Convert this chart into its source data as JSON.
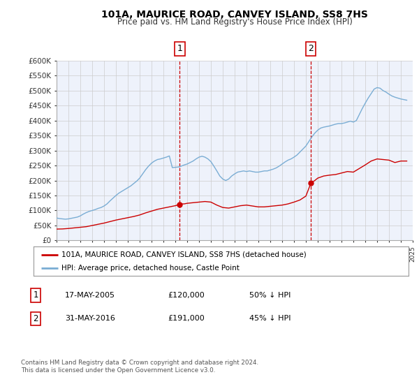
{
  "title": "101A, MAURICE ROAD, CANVEY ISLAND, SS8 7HS",
  "subtitle": "Price paid vs. HM Land Registry's House Price Index (HPI)",
  "ylabel_ticks": [
    "£0",
    "£50K",
    "£100K",
    "£150K",
    "£200K",
    "£250K",
    "£300K",
    "£350K",
    "£400K",
    "£450K",
    "£500K",
    "£550K",
    "£600K"
  ],
  "ytick_values": [
    0,
    50000,
    100000,
    150000,
    200000,
    250000,
    300000,
    350000,
    400000,
    450000,
    500000,
    550000,
    600000
  ],
  "xmin": 1995,
  "xmax": 2025,
  "ymin": 0,
  "ymax": 600000,
  "bg_color": "#eef2fb",
  "grid_color": "#cccccc",
  "red_line_color": "#cc0000",
  "blue_line_color": "#7aadd4",
  "marker1_date": 2005.38,
  "marker1_value": 120000,
  "marker1_label": "1",
  "marker2_date": 2016.42,
  "marker2_value": 191000,
  "marker2_label": "2",
  "legend_line1": "101A, MAURICE ROAD, CANVEY ISLAND, SS8 7HS (detached house)",
  "legend_line2": "HPI: Average price, detached house, Castle Point",
  "table_row1": [
    "1",
    "17-MAY-2005",
    "£120,000",
    "50% ↓ HPI"
  ],
  "table_row2": [
    "2",
    "31-MAY-2016",
    "£191,000",
    "45% ↓ HPI"
  ],
  "footer1": "Contains HM Land Registry data © Crown copyright and database right 2024.",
  "footer2": "This data is licensed under the Open Government Licence v3.0.",
  "hpi_data": {
    "years": [
      1995.0,
      1995.25,
      1995.5,
      1995.75,
      1996.0,
      1996.25,
      1996.5,
      1996.75,
      1997.0,
      1997.25,
      1997.5,
      1997.75,
      1998.0,
      1998.25,
      1998.5,
      1998.75,
      1999.0,
      1999.25,
      1999.5,
      1999.75,
      2000.0,
      2000.25,
      2000.5,
      2000.75,
      2001.0,
      2001.25,
      2001.5,
      2001.75,
      2002.0,
      2002.25,
      2002.5,
      2002.75,
      2003.0,
      2003.25,
      2003.5,
      2003.75,
      2004.0,
      2004.25,
      2004.5,
      2004.75,
      2005.0,
      2005.25,
      2005.5,
      2005.75,
      2006.0,
      2006.25,
      2006.5,
      2006.75,
      2007.0,
      2007.25,
      2007.5,
      2007.75,
      2008.0,
      2008.25,
      2008.5,
      2008.75,
      2009.0,
      2009.25,
      2009.5,
      2009.75,
      2010.0,
      2010.25,
      2010.5,
      2010.75,
      2011.0,
      2011.25,
      2011.5,
      2011.75,
      2012.0,
      2012.25,
      2012.5,
      2012.75,
      2013.0,
      2013.25,
      2013.5,
      2013.75,
      2014.0,
      2014.25,
      2014.5,
      2014.75,
      2015.0,
      2015.25,
      2015.5,
      2015.75,
      2016.0,
      2016.25,
      2016.5,
      2016.75,
      2017.0,
      2017.25,
      2017.5,
      2017.75,
      2018.0,
      2018.25,
      2018.5,
      2018.75,
      2019.0,
      2019.25,
      2019.5,
      2019.75,
      2020.0,
      2020.25,
      2020.5,
      2020.75,
      2021.0,
      2021.25,
      2021.5,
      2021.75,
      2022.0,
      2022.25,
      2022.5,
      2022.75,
      2023.0,
      2023.25,
      2023.5,
      2023.75,
      2024.0,
      2024.25,
      2024.5
    ],
    "values": [
      75000,
      73000,
      72000,
      71000,
      72000,
      74000,
      76000,
      78000,
      82000,
      88000,
      93000,
      97000,
      100000,
      103000,
      107000,
      110000,
      115000,
      122000,
      132000,
      141000,
      150000,
      158000,
      164000,
      170000,
      176000,
      182000,
      190000,
      198000,
      208000,
      222000,
      236000,
      248000,
      258000,
      265000,
      270000,
      272000,
      275000,
      278000,
      282000,
      243000,
      244000,
      245000,
      248000,
      252000,
      255000,
      260000,
      265000,
      272000,
      278000,
      281000,
      278000,
      272000,
      263000,
      248000,
      232000,
      215000,
      205000,
      200000,
      205000,
      215000,
      222000,
      228000,
      230000,
      232000,
      230000,
      232000,
      230000,
      228000,
      228000,
      230000,
      232000,
      232000,
      235000,
      238000,
      242000,
      248000,
      255000,
      262000,
      268000,
      272000,
      278000,
      285000,
      295000,
      305000,
      315000,
      330000,
      345000,
      358000,
      368000,
      375000,
      378000,
      380000,
      382000,
      385000,
      388000,
      390000,
      390000,
      392000,
      395000,
      398000,
      395000,
      400000,
      420000,
      440000,
      458000,
      475000,
      490000,
      505000,
      510000,
      508000,
      500000,
      495000,
      488000,
      482000,
      478000,
      475000,
      472000,
      470000,
      468000
    ]
  },
  "red_data": {
    "years": [
      1995.0,
      1995.5,
      1996.0,
      1996.5,
      1997.0,
      1997.5,
      1998.0,
      1998.5,
      1999.0,
      1999.5,
      2000.0,
      2000.5,
      2001.0,
      2001.5,
      2002.0,
      2002.5,
      2003.0,
      2003.5,
      2004.0,
      2004.5,
      2005.0,
      2005.38,
      2005.5,
      2005.75,
      2006.0,
      2006.5,
      2007.0,
      2007.5,
      2008.0,
      2008.5,
      2009.0,
      2009.5,
      2010.0,
      2010.5,
      2011.0,
      2011.5,
      2012.0,
      2012.5,
      2013.0,
      2013.5,
      2014.0,
      2014.5,
      2015.0,
      2015.5,
      2016.0,
      2016.42,
      2016.75,
      2017.0,
      2017.5,
      2018.0,
      2018.5,
      2019.0,
      2019.5,
      2020.0,
      2020.5,
      2021.0,
      2021.5,
      2022.0,
      2022.5,
      2023.0,
      2023.5,
      2024.0,
      2024.5
    ],
    "values": [
      38000,
      38500,
      40000,
      42000,
      44000,
      46000,
      50000,
      54000,
      58000,
      63000,
      68000,
      72000,
      76000,
      80000,
      85000,
      92000,
      98000,
      104000,
      108000,
      112000,
      116000,
      120000,
      122000,
      122000,
      124000,
      126000,
      128000,
      130000,
      128000,
      118000,
      110000,
      108000,
      112000,
      116000,
      118000,
      115000,
      112000,
      112000,
      114000,
      116000,
      118000,
      122000,
      128000,
      135000,
      148000,
      191000,
      200000,
      208000,
      215000,
      218000,
      220000,
      225000,
      230000,
      228000,
      240000,
      252000,
      265000,
      272000,
      270000,
      268000,
      260000,
      265000,
      265000
    ]
  }
}
